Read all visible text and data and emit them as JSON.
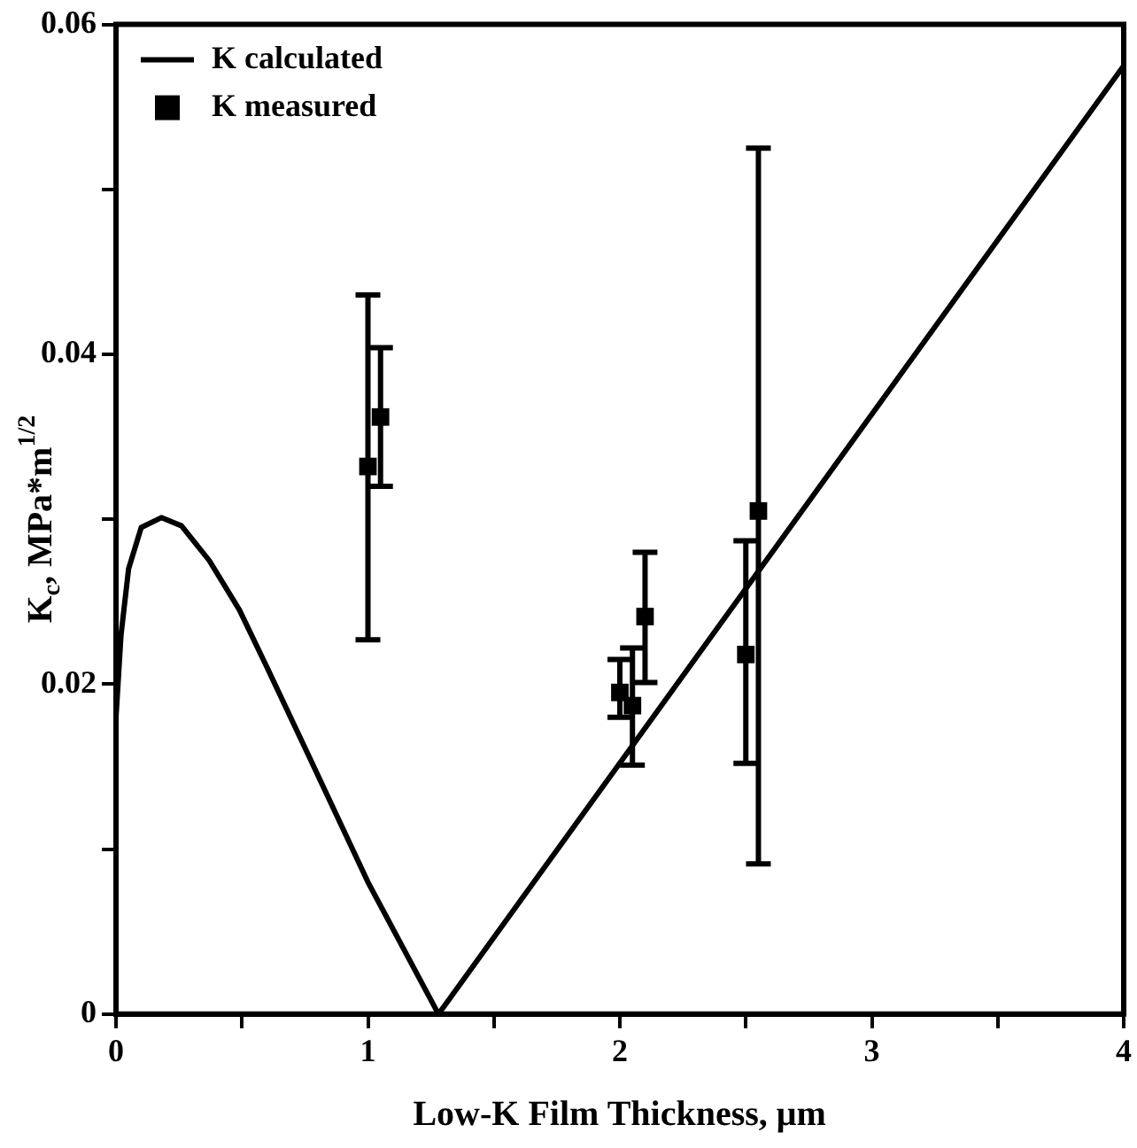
{
  "chart_data": {
    "type": "scatter",
    "xlabel": "Low-K Film Thickness, μm",
    "ylabel": "K$_{c}$, MPa*m$^{1/2}$",
    "xlim": [
      0,
      4
    ],
    "ylim": [
      0,
      0.06
    ],
    "xticks": [
      0,
      {
        "value": 0.5,
        "label": null
      },
      1,
      {
        "value": 1.5,
        "label": null
      },
      2,
      {
        "value": 2.5,
        "label": null
      },
      3,
      {
        "value": 3.5,
        "label": null
      },
      4
    ],
    "yticks": [
      0,
      {
        "value": 0.01,
        "label": null
      },
      0.02,
      {
        "value": 0.03,
        "label": null
      },
      0.04,
      {
        "value": 0.05,
        "label": null
      },
      0.06
    ],
    "legend": "top left",
    "grid": false,
    "series": [
      {
        "name": "K calculated",
        "type": "line",
        "color": "#000000",
        "marker": "none",
        "line_style": "solid",
        "x": [
          0,
          0.02,
          0.05,
          0.1,
          0.18,
          0.26,
          0.37,
          0.49,
          0.6,
          0.77,
          1.0,
          1.28,
          4
        ],
        "values": [
          0.018,
          0.023,
          0.027,
          0.0295,
          0.0301,
          0.0296,
          0.0275,
          0.0245,
          0.021,
          0.0155,
          0.008,
          0,
          0.0575
        ]
      },
      {
        "name": "K measured",
        "type": "scatter",
        "color": "#000000",
        "marker": "square",
        "x": [
          1.0,
          1.05,
          2.0,
          2.05,
          2.1,
          2.5,
          2.55
        ],
        "values": [
          0.0332,
          0.0362,
          0.0195,
          0.0187,
          0.0241,
          0.0218,
          0.0305
        ],
        "errors": [
          [
            0.0227,
            0.0436
          ],
          [
            0.032,
            0.0404
          ],
          [
            0.018,
            0.0215
          ],
          [
            0.0151,
            0.0222
          ],
          [
            0.0201,
            0.028
          ],
          [
            0.0152,
            0.0287
          ],
          [
            0.0091,
            0.0525
          ]
        ]
      }
    ]
  }
}
